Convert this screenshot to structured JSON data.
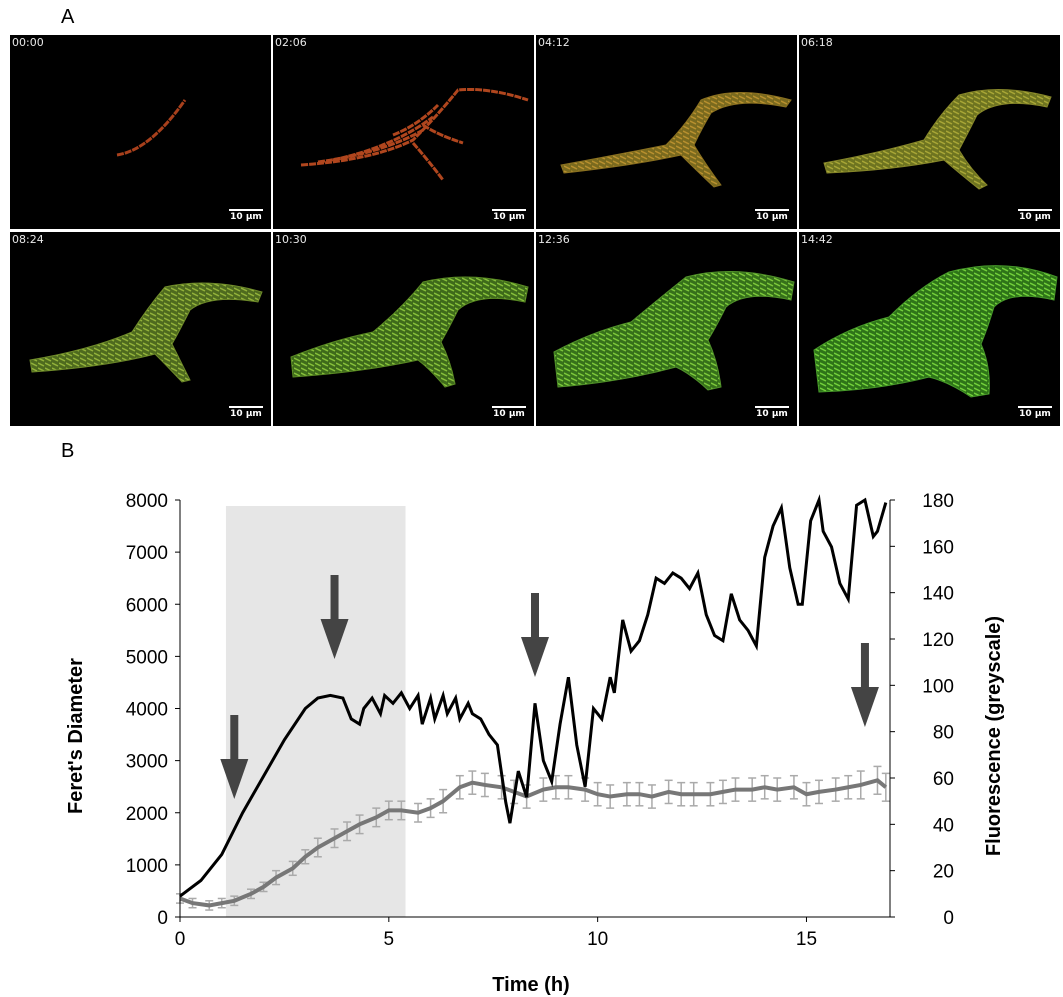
{
  "panels": {
    "a_label": "A",
    "b_label": "B"
  },
  "timelapse": {
    "timestamps": [
      "00:00",
      "02:06",
      "04:12",
      "06:18",
      "08:24",
      "10:30",
      "12:36",
      "14:42"
    ],
    "scale_bar": "10 μm"
  },
  "chart_data": {
    "type": "line",
    "xlabel": "Time (h)",
    "ylabel": "Feret's Diameter",
    "y2label": "Fluorescence (greyscale)",
    "xlim": [
      0,
      17
    ],
    "ylim": [
      0,
      8000
    ],
    "y2lim": [
      0,
      180
    ],
    "xticks": [
      "0",
      "5",
      "10",
      "15"
    ],
    "yticks": [
      "0",
      "1000",
      "2000",
      "3000",
      "4000",
      "5000",
      "6000",
      "7000",
      "8000"
    ],
    "y2ticks": [
      "0",
      "20",
      "40",
      "60",
      "80",
      "100",
      "120",
      "140",
      "160",
      "180"
    ],
    "shaded_region": [
      1.1,
      5.4
    ],
    "arrows_x": [
      1.3,
      3.7,
      8.5,
      16.4
    ],
    "series": [
      {
        "axis": "left",
        "color": "#000000",
        "x": [
          0,
          0.5,
          1.0,
          1.5,
          2.0,
          2.5,
          3.0,
          3.3,
          3.6,
          3.9,
          4.1,
          4.3,
          4.4,
          4.6,
          4.8,
          4.9,
          5.1,
          5.3,
          5.5,
          5.7,
          5.8,
          6.0,
          6.1,
          6.3,
          6.4,
          6.6,
          6.7,
          6.9,
          7.0,
          7.2,
          7.4,
          7.6,
          7.8,
          7.9,
          8.1,
          8.3,
          8.5,
          8.7,
          8.9,
          9.1,
          9.3,
          9.5,
          9.7,
          9.9,
          10.1,
          10.3,
          10.4,
          10.6,
          10.8,
          11.0,
          11.2,
          11.4,
          11.6,
          11.8,
          12.0,
          12.2,
          12.4,
          12.6,
          12.8,
          13.0,
          13.2,
          13.4,
          13.6,
          13.8,
          14.0,
          14.2,
          14.4,
          14.6,
          14.8,
          14.9,
          15.1,
          15.3,
          15.4,
          15.6,
          15.8,
          16.0,
          16.2,
          16.4,
          16.6,
          16.7,
          16.9
        ],
        "values": [
          400,
          700,
          1200,
          2000,
          2700,
          3400,
          4000,
          4200,
          4250,
          4200,
          3800,
          3700,
          4000,
          4200,
          3900,
          4250,
          4100,
          4300,
          4000,
          4250,
          3700,
          4200,
          3800,
          4250,
          3900,
          4200,
          3800,
          4100,
          3900,
          3800,
          3500,
          3300,
          2200,
          1800,
          2800,
          2300,
          4100,
          3000,
          2600,
          3700,
          4600,
          3300,
          2500,
          4000,
          3800,
          4600,
          4300,
          5700,
          5100,
          5300,
          5800,
          6500,
          6400,
          6600,
          6500,
          6300,
          6600,
          5800,
          5400,
          5300,
          6200,
          5700,
          5500,
          5200,
          6900,
          7500,
          7850,
          6700,
          6000,
          6000,
          7600,
          8000,
          7400,
          7100,
          6400,
          6100,
          7900,
          8000,
          7300,
          7400,
          7950
        ]
      },
      {
        "axis": "right",
        "color": "#777777",
        "x": [
          0,
          0.3,
          0.7,
          1.0,
          1.3,
          1.7,
          2.0,
          2.3,
          2.7,
          3.0,
          3.3,
          3.7,
          4.0,
          4.3,
          4.7,
          5.0,
          5.3,
          5.7,
          6.0,
          6.3,
          6.7,
          7.0,
          7.3,
          7.7,
          8.0,
          8.3,
          8.7,
          9.0,
          9.3,
          9.7,
          10.0,
          10.3,
          10.7,
          11.0,
          11.3,
          11.7,
          12.0,
          12.3,
          12.7,
          13.0,
          13.3,
          13.7,
          14.0,
          14.3,
          14.7,
          15.0,
          15.3,
          15.7,
          16.0,
          16.3,
          16.7,
          16.9
        ],
        "values": [
          8,
          6,
          5,
          6,
          7,
          10,
          13,
          17,
          21,
          26,
          30,
          34,
          37,
          40,
          43,
          46,
          46,
          45,
          47,
          50,
          56,
          58,
          57,
          56,
          54,
          52,
          55,
          56,
          56,
          55,
          53,
          52,
          53,
          53,
          52,
          54,
          53,
          53,
          53,
          54,
          55,
          55,
          56,
          55,
          56,
          53,
          54,
          55,
          56,
          57,
          59,
          56
        ],
        "error": [
          2,
          2,
          2,
          2,
          2,
          2,
          2,
          3,
          3,
          3,
          4,
          4,
          4,
          4,
          4,
          4,
          4,
          4,
          4,
          5,
          5,
          5,
          5,
          5,
          5,
          5,
          5,
          5,
          5,
          5,
          5,
          5,
          5,
          5,
          5,
          5,
          5,
          5,
          5,
          5,
          5,
          5,
          5,
          5,
          5,
          5,
          5,
          5,
          5,
          6,
          6,
          6
        ]
      }
    ]
  }
}
